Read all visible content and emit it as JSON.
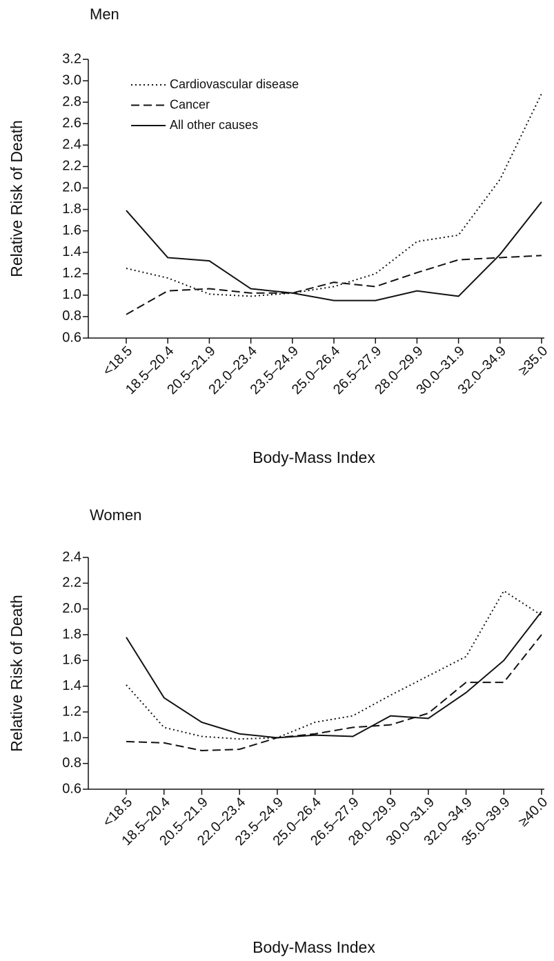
{
  "chart_data": [
    {
      "type": "line",
      "title": "Men",
      "x_label": "Body-Mass Index",
      "y_label": "Relative Risk of Death",
      "categories": [
        "<18.5",
        "18.5–20.4",
        "20.5–21.9",
        "22.0–23.4",
        "23.5–24.9",
        "25.0–26.4",
        "26.5–27.9",
        "28.0–29.9",
        "30.0–31.9",
        "32.0–34.9",
        "≥35.0"
      ],
      "series": [
        {
          "name": "Cardiovascular disease",
          "color": "#111111",
          "dash": "dotted",
          "values": [
            1.25,
            1.16,
            1.01,
            0.99,
            1.02,
            1.08,
            1.2,
            1.5,
            1.56,
            2.08,
            2.88
          ]
        },
        {
          "name": "Cancer",
          "color": "#111111",
          "dash": "dashed",
          "values": [
            0.82,
            1.04,
            1.06,
            1.02,
            1.02,
            1.12,
            1.08,
            1.21,
            1.33,
            1.35,
            1.37
          ]
        },
        {
          "name": "All other causes",
          "color": "#111111",
          "dash": "solid",
          "values": [
            1.79,
            1.35,
            1.32,
            1.06,
            1.02,
            0.95,
            0.95,
            1.04,
            0.99,
            1.38,
            1.87
          ]
        }
      ],
      "ylim": [
        0.6,
        3.2
      ],
      "yticks": [
        0.6,
        0.8,
        {
          "value": 1,
          "label": "1.0"
        },
        1.2,
        1.4,
        1.6,
        1.8,
        {
          "value": 2,
          "label": "2.0"
        },
        2.2,
        2.4,
        2.6,
        2.8,
        {
          "value": 3,
          "label": "3.0"
        },
        3.2
      ],
      "legend": "upper left",
      "grid": false
    },
    {
      "type": "line",
      "title": "Women",
      "x_label": "Body-Mass Index",
      "y_label": "Relative Risk of Death",
      "categories": [
        "<18.5",
        "18.5–20.4",
        "20.5–21.9",
        "22.0–23.4",
        "23.5–24.9",
        "25.0–26.4",
        "26.5–27.9",
        "28.0–29.9",
        "30.0–31.9",
        "32.0–34.9",
        "35.0–39.9",
        "≥40.0"
      ],
      "series": [
        {
          "color": "#111111",
          "dash": "dotted",
          "values": [
            1.41,
            1.08,
            1.01,
            0.99,
            1.0,
            1.12,
            1.17,
            1.33,
            1.48,
            1.63,
            2.14,
            1.95
          ]
        },
        {
          "color": "#111111",
          "dash": "dashed",
          "values": [
            0.97,
            0.96,
            0.9,
            0.91,
            1.0,
            1.03,
            1.08,
            1.1,
            1.19,
            1.43,
            1.43,
            1.8
          ]
        },
        {
          "color": "#111111",
          "dash": "solid",
          "values": [
            1.78,
            1.31,
            1.12,
            1.03,
            1.0,
            1.02,
            1.01,
            1.17,
            1.15,
            1.35,
            1.6,
            1.98
          ]
        }
      ],
      "ylim": [
        0.6,
        2.4
      ],
      "yticks": [
        0.6,
        0.8,
        {
          "value": 1,
          "label": "1.0"
        },
        1.2,
        1.4,
        1.6,
        1.8,
        {
          "value": 2,
          "label": "2.0"
        },
        2.2,
        2.4
      ],
      "grid": false
    }
  ]
}
